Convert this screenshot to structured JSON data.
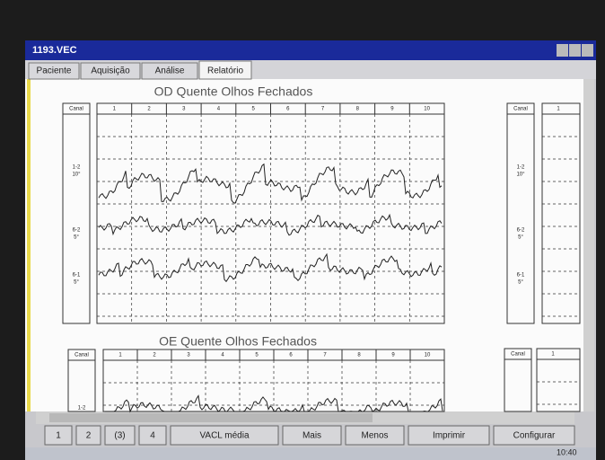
{
  "window": {
    "title": "1193.VEC"
  },
  "tabs": [
    "Paciente",
    "Aquisição",
    "Análise",
    "Relatório"
  ],
  "panels": [
    {
      "title": "OD Quente Olhos Fechados",
      "channel_header": "Canal",
      "columns": [
        "1",
        "2",
        "3",
        "4",
        "5",
        "6",
        "7",
        "8",
        "9",
        "10"
      ],
      "channels": [
        {
          "name": "1-2",
          "gain": "10°"
        },
        {
          "name": "6-2",
          "gain": "5°"
        },
        {
          "name": "6-1",
          "gain": "5°"
        }
      ]
    },
    {
      "title": "OE Quente Olhos Fechados",
      "channel_header": "Canal",
      "columns": [
        "1",
        "2",
        "3",
        "4",
        "5",
        "6",
        "7",
        "8",
        "9",
        "10"
      ],
      "channels": [
        {
          "name": "1-2"
        }
      ]
    }
  ],
  "side_panels": [
    {
      "channel_header": "Canal",
      "columns": [
        "1"
      ],
      "channels": [
        {
          "name": "1-2",
          "gain": "10°"
        },
        {
          "name": "6-2",
          "gain": "5°"
        },
        {
          "name": "6-1",
          "gain": "5°"
        }
      ]
    },
    {
      "channel_header": "Canal",
      "columns": [
        "1"
      ]
    }
  ],
  "buttons": [
    "1",
    "2",
    "(3)",
    "4",
    "VACL média",
    "Mais",
    "Menos",
    "Imprimir",
    "Configurar"
  ],
  "taskbar": {
    "time": "10:40"
  }
}
